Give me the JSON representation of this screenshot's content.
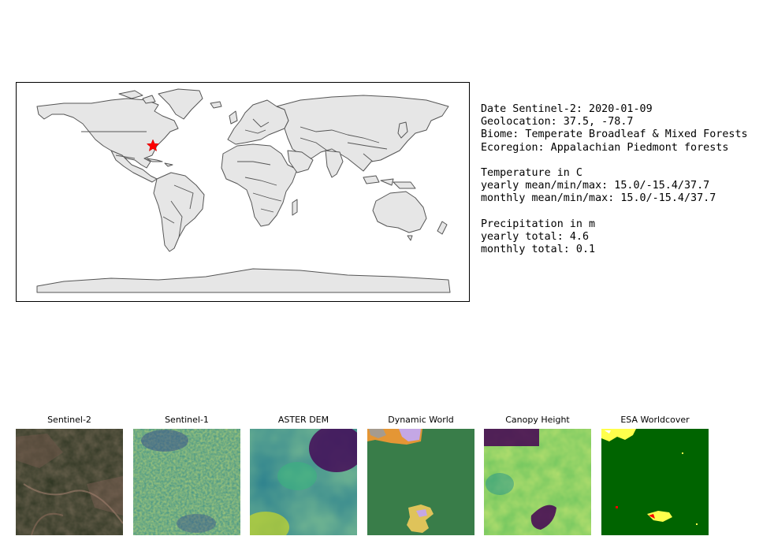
{
  "info": {
    "date_line": "Date Sentinel-2: 2020-01-09",
    "geolocation_line": "Geolocation: 37.5, -78.7",
    "biome_line": "Biome: Temperate Broadleaf & Mixed Forests",
    "ecoregion_line": "Ecoregion: Appalachian Piedmont forests",
    "temperature_header": "Temperature in C",
    "temp_yearly_line": "yearly mean/min/max: 15.0/-15.4/37.7",
    "temp_monthly_line": "monthly mean/min/max: 15.0/-15.4/37.7",
    "precip_header": "Precipitation in m",
    "precip_yearly_line": "yearly total: 4.6",
    "precip_monthly_line": "monthly total: 0.1"
  },
  "map": {
    "marker": {
      "lat": 37.5,
      "lon": -78.7,
      "color": "#ff0000",
      "icon": "star-icon"
    },
    "land_color": "#e6e6e6",
    "border_color": "#555555"
  },
  "panels": [
    {
      "title": "Sentinel-2"
    },
    {
      "title": "Sentinel-1"
    },
    {
      "title": "ASTER DEM"
    },
    {
      "title": "Dynamic World"
    },
    {
      "title": "Canopy Height"
    },
    {
      "title": "ESA Worldcover"
    }
  ]
}
